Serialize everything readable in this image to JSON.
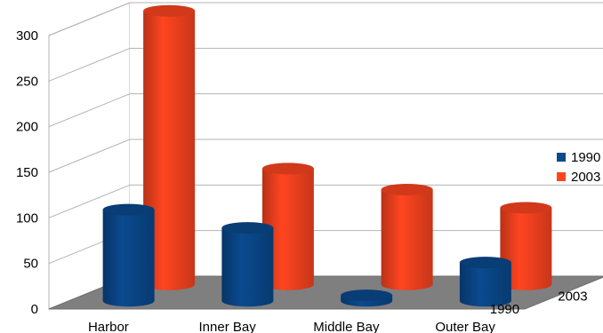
{
  "chart_data": {
    "type": "bar",
    "categories": [
      "Harbor",
      "Inner Bay",
      "Middle Bay",
      "Outer Bay"
    ],
    "series": [
      {
        "name": "1990",
        "values": [
          100,
          80,
          6,
          42
        ],
        "color": "#0a4a8f"
      },
      {
        "name": "2003",
        "values": [
          300,
          127,
          104,
          84
        ],
        "color": "#ff4520"
      }
    ],
    "depth_labels": [
      "2003",
      "1990"
    ],
    "y_ticks": [
      "0",
      "50",
      "100",
      "150",
      "200",
      "250",
      "300"
    ],
    "ylim": [
      0,
      300
    ],
    "grid": true,
    "legend": {
      "placement": "right",
      "entries": [
        "1990",
        "2003"
      ]
    },
    "title": "",
    "xlabel": "",
    "ylabel": ""
  }
}
